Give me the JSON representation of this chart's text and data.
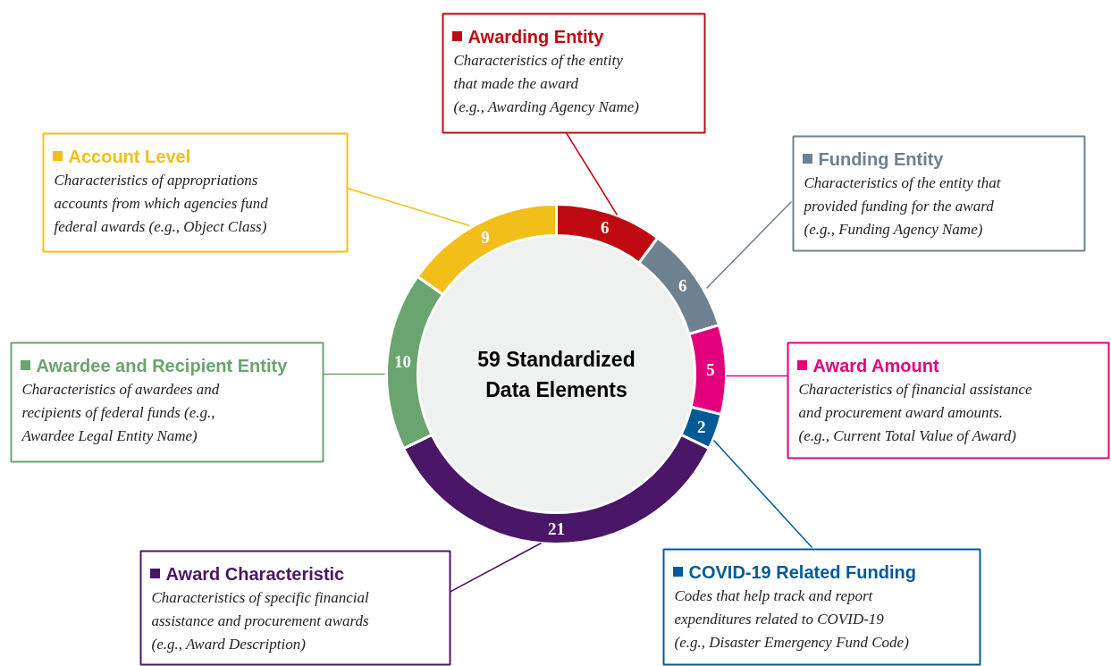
{
  "chart_data": {
    "type": "donut",
    "title": "59 Standardized\nData Elements",
    "categories": [
      "Awarding Entity",
      "Funding Entity",
      "Award Amount",
      "COVID-19 Related Funding",
      "Award Characteristic",
      "Awardee and Recipient Entity",
      "Account Level"
    ],
    "values": [
      6,
      6,
      5,
      2,
      21,
      10,
      9
    ],
    "colors": [
      "#c00a12",
      "#6e8190",
      "#e4007d",
      "#005a95",
      "#4a1668",
      "#6aa46e",
      "#f2bf1a"
    ],
    "data_labels": true,
    "legend": "top left",
    "annotations": [
      "Characteristics of the entity\nthat made the award\n(e.g., Awarding Agency Name)",
      "Characteristics of the entity that\nprovided funding for the award\n(e.g., Funding Agency Name)",
      "Characteristics of financial assistance\nand procurement award amounts.\n(e.g., Current Total Value of Award)",
      "Codes that help track and report\nexpenditures related to COVID-19\n(e.g., Disaster Emergency Fund Code)",
      "Characteristics of specific financial\nassistance and procurement awards\n(e.g., Award Description)",
      "Characteristics of awardees and\nrecipients of federal funds (e.g.,\nAwardee Legal Entity Name)",
      "Characteristics of appropriations\naccounts from which agencies fund\nfederal awards (e.g., Object Class)"
    ]
  }
}
